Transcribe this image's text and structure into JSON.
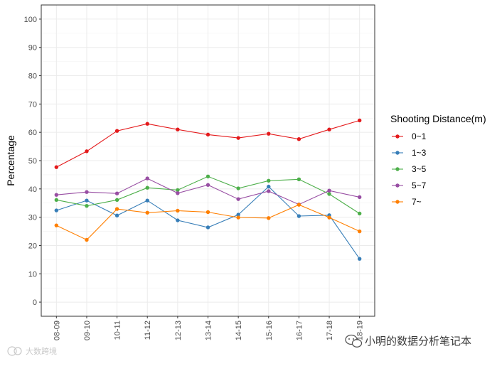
{
  "chart_data": {
    "type": "line",
    "categories": [
      "08-09",
      "09-10",
      "10-11",
      "11-12",
      "12-13",
      "13-14",
      "14-15",
      "15-16",
      "16-17",
      "17-18",
      "18-19"
    ],
    "ylabel": "Percentage",
    "xlabel": "",
    "ylim": [
      -5,
      105
    ],
    "yticks": [
      0,
      10,
      20,
      30,
      40,
      50,
      60,
      70,
      80,
      90,
      100
    ],
    "grid": true,
    "legend_title": "Shooting Distance(m)",
    "legend_position": "right",
    "series": [
      {
        "name": "0~1",
        "color": "#e41a1c",
        "values": [
          47.7,
          53.3,
          60.5,
          63.0,
          61.0,
          59.2,
          58.0,
          59.5,
          57.6,
          61.0,
          64.2
        ]
      },
      {
        "name": "1~3",
        "color": "#377eb8",
        "values": [
          32.4,
          35.9,
          30.6,
          35.9,
          28.9,
          26.4,
          30.9,
          40.8,
          30.4,
          30.7,
          15.3
        ]
      },
      {
        "name": "3~5",
        "color": "#4daf4a",
        "values": [
          36.1,
          34.0,
          36.1,
          40.4,
          39.6,
          44.4,
          40.2,
          42.9,
          43.4,
          38.2,
          31.3
        ]
      },
      {
        "name": "5~7",
        "color": "#984ea3",
        "values": [
          37.9,
          38.9,
          38.4,
          43.7,
          38.5,
          41.4,
          36.4,
          39.2,
          34.5,
          39.4,
          37.1
        ]
      },
      {
        "name": "7~",
        "color": "#ff7f00",
        "values": [
          27.1,
          22.0,
          32.9,
          31.6,
          32.3,
          31.8,
          29.9,
          29.7,
          34.4,
          29.9,
          25.0
        ]
      }
    ]
  },
  "watermarks": {
    "left_text": "大数跨境",
    "right_text": "小明的数据分析笔记本",
    "wechat_icon": "wechat-icon"
  }
}
